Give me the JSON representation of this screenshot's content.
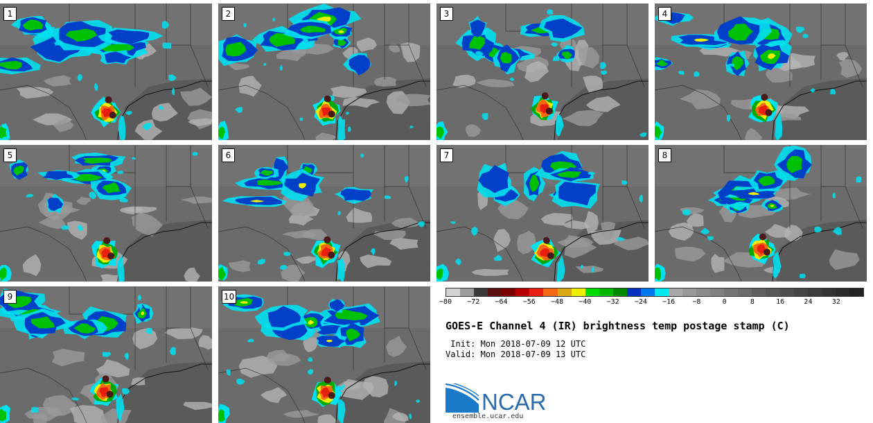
{
  "panels": [
    {
      "label": "1",
      "id": 1
    },
    {
      "label": "2",
      "id": 2
    },
    {
      "label": "3",
      "id": 3
    },
    {
      "label": "4",
      "id": 4
    },
    {
      "label": "5",
      "id": 5
    },
    {
      "label": "6",
      "id": 6
    },
    {
      "label": "7",
      "id": 7
    },
    {
      "label": "8",
      "id": 8
    },
    {
      "label": "9",
      "id": 9
    },
    {
      "label": "10",
      "id": 10
    }
  ],
  "colorbar": {
    "colors": [
      "#d3d3d3",
      "#9b9b9b",
      "#3a3a3a",
      "#5a1010",
      "#7a0000",
      "#b80000",
      "#e81e10",
      "#f56a10",
      "#d8a810",
      "#eeee00",
      "#00dd00",
      "#00b800",
      "#008a00",
      "#0030c0",
      "#0078f0",
      "#00e8f0",
      "#a8a8a8",
      "#999999",
      "#8c8c8c",
      "#808080",
      "#757575",
      "#6b6b6b",
      "#616161",
      "#575757",
      "#4e4e4e",
      "#454545",
      "#3c3c3c",
      "#333333",
      "#2a2a2a",
      "#222222"
    ],
    "ticks": [
      {
        "label": "−80",
        "value": -80
      },
      {
        "label": "−72",
        "value": -72
      },
      {
        "label": "−64",
        "value": -64
      },
      {
        "label": "−56",
        "value": -56
      },
      {
        "label": "−48",
        "value": -48
      },
      {
        "label": "−40",
        "value": -40
      },
      {
        "label": "−32",
        "value": -32
      },
      {
        "label": "−24",
        "value": -24
      },
      {
        "label": "−16",
        "value": -16
      },
      {
        "label": "−8",
        "value": -8
      },
      {
        "label": "0",
        "value": 0
      },
      {
        "label": "8",
        "value": 8
      },
      {
        "label": "16",
        "value": 16
      },
      {
        "label": "24",
        "value": 24
      },
      {
        "label": "32",
        "value": 32
      }
    ],
    "min": -80,
    "max": 40
  },
  "title": "GOES-E Channel 4 (IR) brightness temp postage stamp (C)",
  "init_line": " Init: Mon 2018-07-09 12 UTC",
  "valid_line": "Valid: Mon 2018-07-09 13 UTC",
  "logo": {
    "text": "NCAR"
  },
  "website": "ensemble.ucar.edu"
}
